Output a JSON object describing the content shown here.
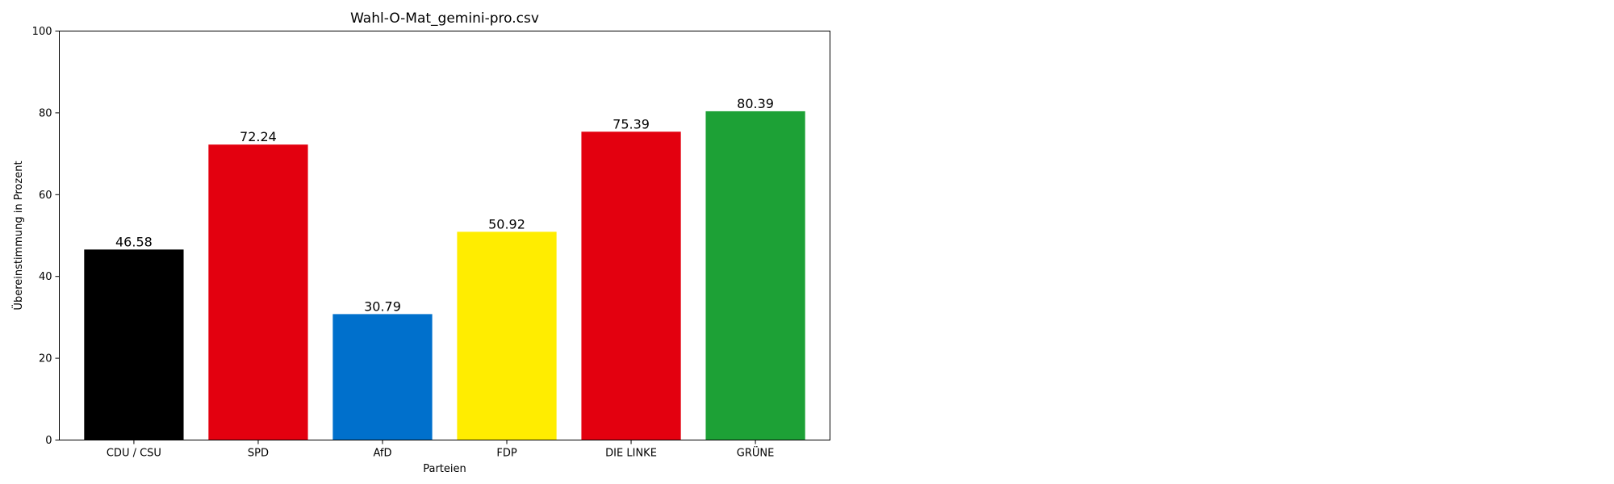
{
  "chart_data": {
    "type": "bar",
    "title": "Wahl-O-Mat_gemini-pro.csv",
    "xlabel": "Parteien",
    "ylabel": "Übereinstimmung in Prozent",
    "ylim": [
      0,
      100
    ],
    "yticks": [
      0,
      20,
      40,
      60,
      80,
      100
    ],
    "grid": false,
    "categories": [
      "CDU / CSU",
      "SPD",
      "AfD",
      "FDP",
      "DIE LINKE",
      "GRÜNE"
    ],
    "values": [
      46.58,
      72.24,
      30.79,
      50.92,
      75.39,
      80.39
    ],
    "value_labels": [
      "46.58",
      "72.24",
      "30.79",
      "50.92",
      "75.39",
      "80.39"
    ],
    "colors": [
      "#000000",
      "#e3000f",
      "#0070cc",
      "#ffed00",
      "#e3000f",
      "#1da136"
    ]
  }
}
